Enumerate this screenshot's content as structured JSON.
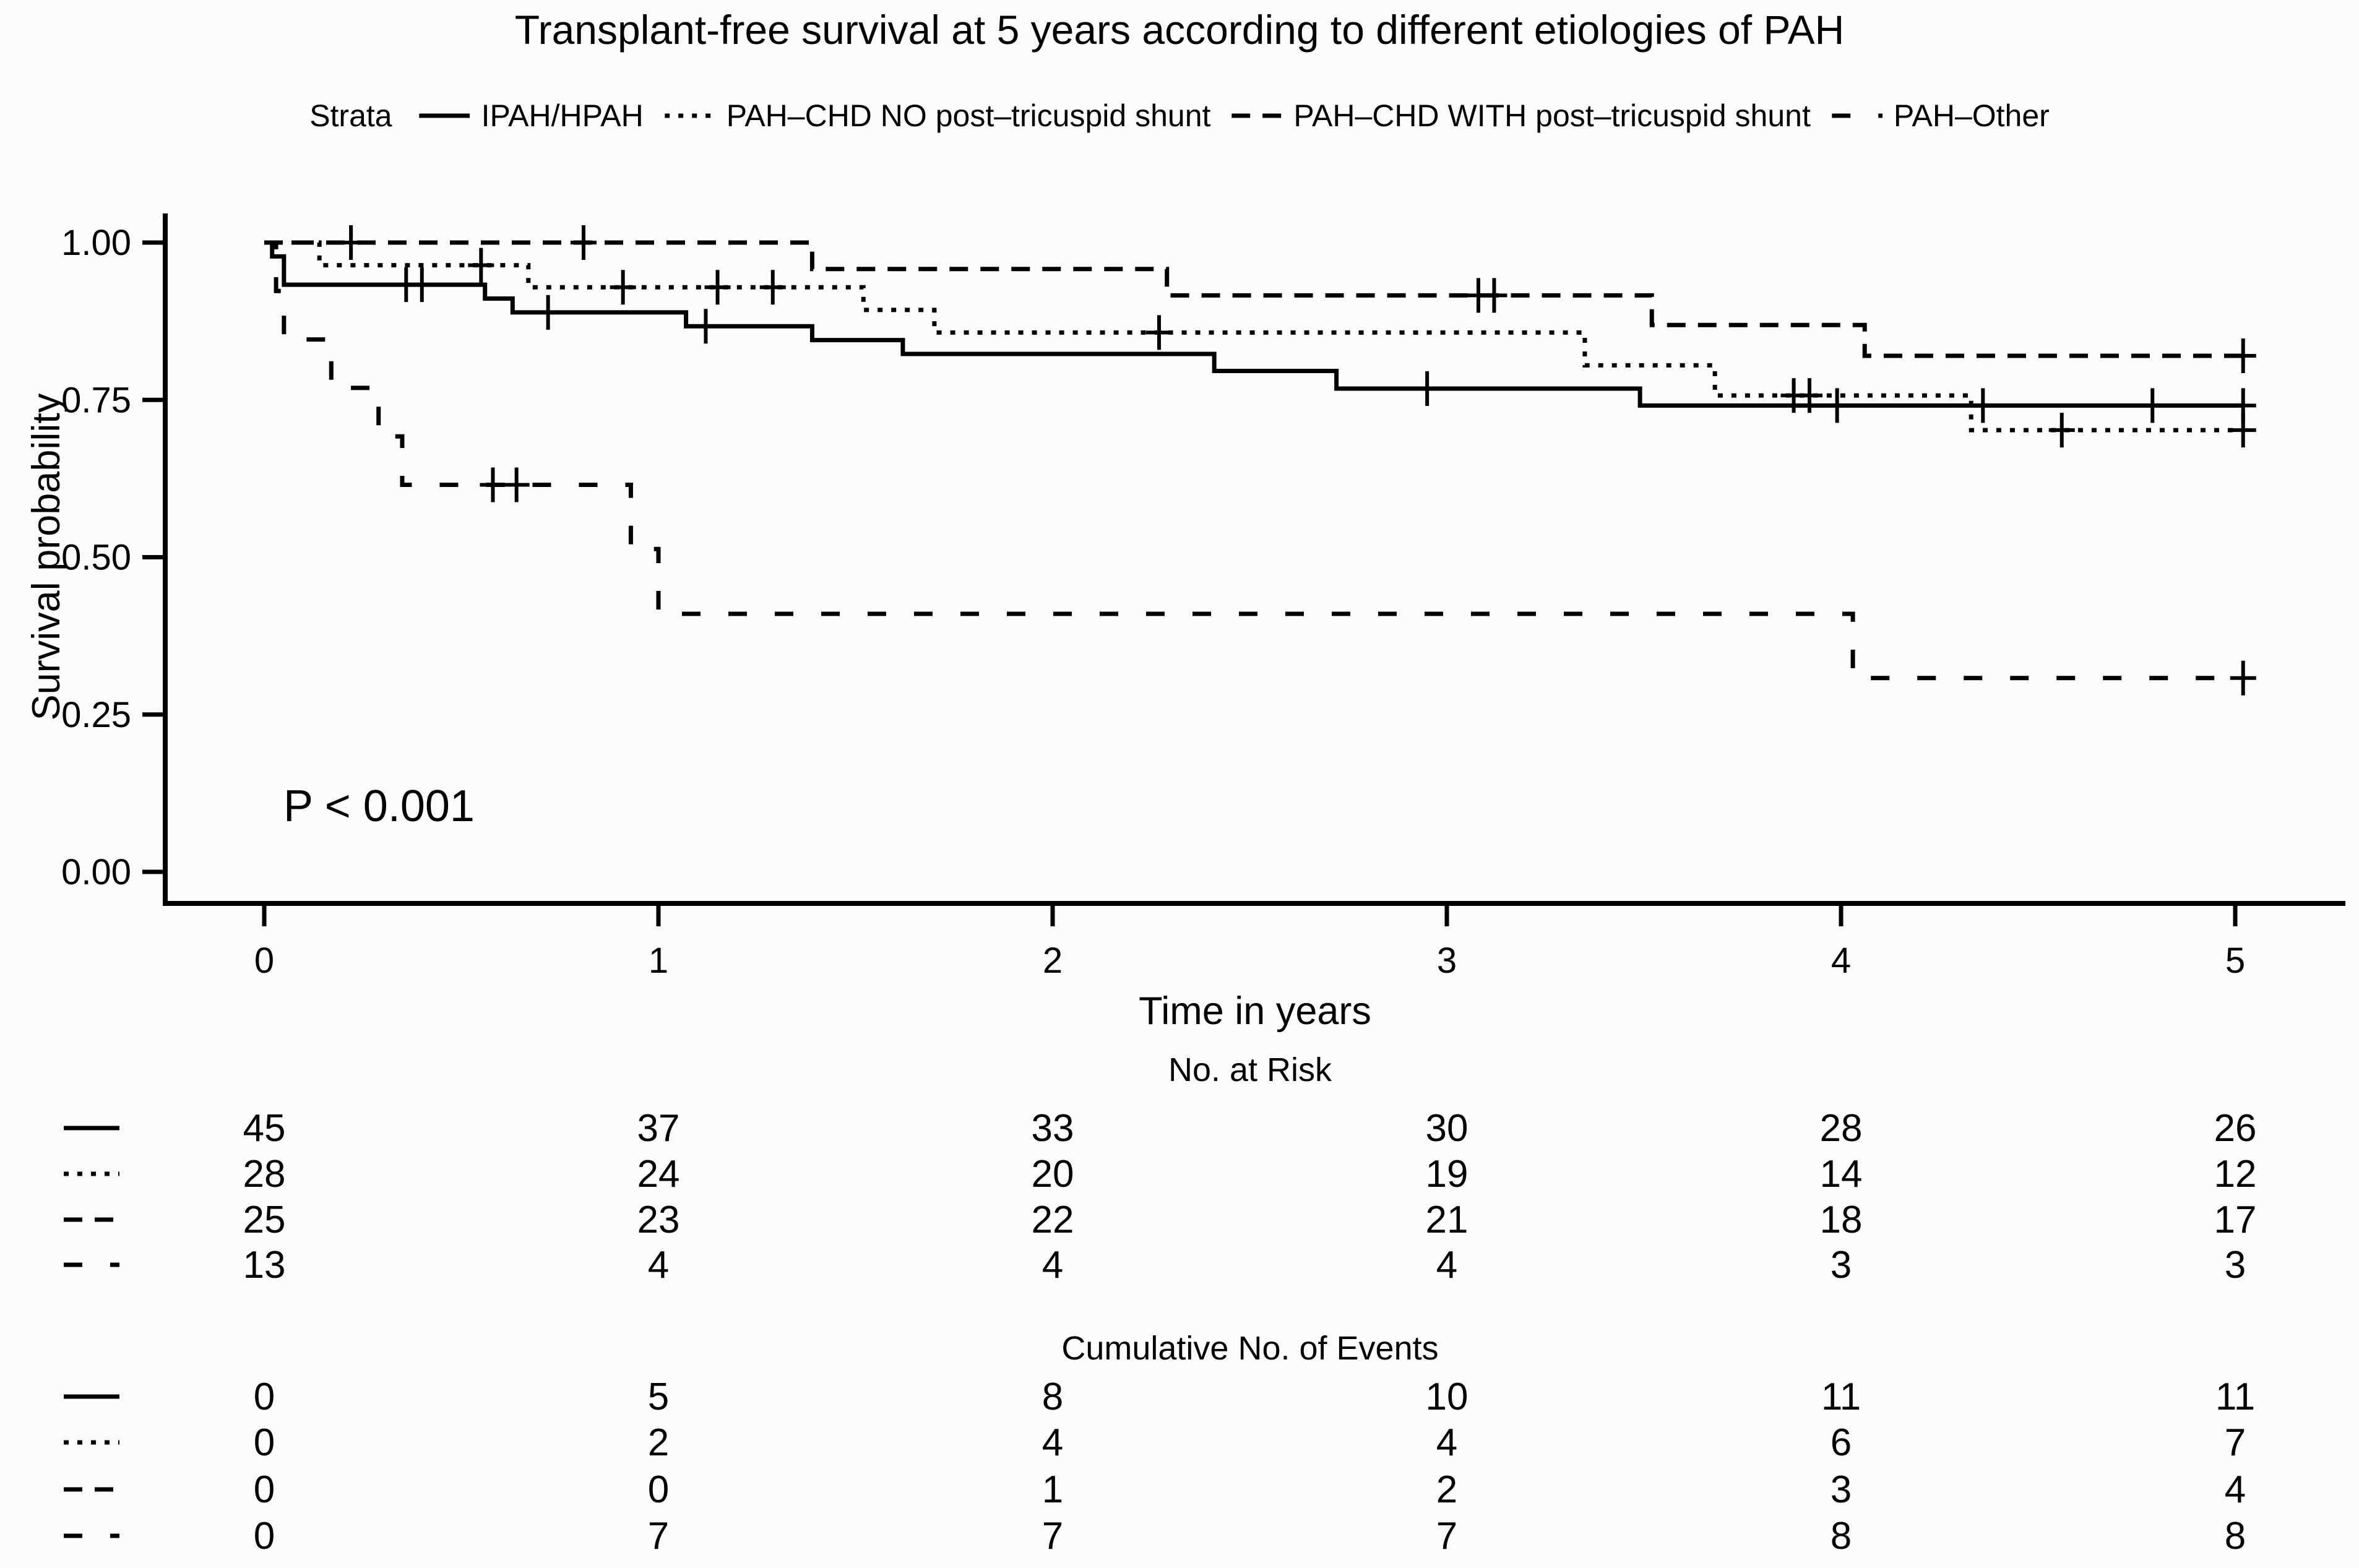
{
  "figure": {
    "title": "Transplant-free survival at 5 years according to different etiologies of PAH",
    "pvalue": "P < 0.001"
  },
  "legend": {
    "strata_label": "Strata"
  },
  "chart_data": {
    "type": "line",
    "subtype": "kaplan-meier-step",
    "title": "Transplant-free survival at 5 years according to different etiologies of PAH",
    "xlabel": "Time in years",
    "ylabel": "Survival probability",
    "xlim": [
      0,
      5
    ],
    "ylim": [
      0,
      1
    ],
    "x_ticks": [
      [
        0,
        "0"
      ],
      [
        1,
        "1"
      ],
      [
        2,
        "2"
      ],
      [
        3,
        "3"
      ],
      [
        4,
        "4"
      ],
      [
        5,
        "5"
      ]
    ],
    "y_ticks": [
      [
        0.0,
        "0.00"
      ],
      [
        0.25,
        "0.25"
      ],
      [
        0.5,
        "0.50"
      ],
      [
        0.75,
        "0.75"
      ],
      [
        1.0,
        "1.00"
      ]
    ],
    "grid": false,
    "legend_position": "top",
    "annotation": "P < 0.001",
    "end_time": 5.02,
    "series": [
      {
        "name": "IPAH/HPAH",
        "line_style": "solid",
        "steps": [
          [
            0,
            1.0
          ],
          [
            0.02,
            0.978
          ],
          [
            0.05,
            0.933
          ],
          [
            0.56,
            0.911
          ],
          [
            0.63,
            0.889
          ],
          [
            1.07,
            0.867
          ],
          [
            1.39,
            0.845
          ],
          [
            1.62,
            0.823
          ],
          [
            2.41,
            0.796
          ],
          [
            2.72,
            0.768
          ],
          [
            3.49,
            0.741
          ]
        ],
        "censors": [
          [
            0.36,
            0.933
          ],
          [
            0.4,
            0.933
          ],
          [
            0.72,
            0.889
          ],
          [
            1.12,
            0.867
          ],
          [
            2.95,
            0.768
          ],
          [
            3.99,
            0.741
          ],
          [
            4.36,
            0.741
          ],
          [
            4.79,
            0.741
          ],
          [
            5.02,
            0.741
          ]
        ]
      },
      {
        "name": "PAH–CHD NO post–tricuspid shunt",
        "line_style": "dotted",
        "steps": [
          [
            0,
            1.0
          ],
          [
            0.14,
            0.964
          ],
          [
            0.67,
            0.929
          ],
          [
            1.52,
            0.893
          ],
          [
            1.7,
            0.857
          ],
          [
            3.35,
            0.805
          ],
          [
            3.68,
            0.757
          ],
          [
            4.33,
            0.702
          ]
        ],
        "censors": [
          [
            0.55,
            0.964
          ],
          [
            0.91,
            0.929
          ],
          [
            1.15,
            0.929
          ],
          [
            1.29,
            0.929
          ],
          [
            2.27,
            0.857
          ],
          [
            3.88,
            0.757
          ],
          [
            3.92,
            0.757
          ],
          [
            4.56,
            0.702
          ],
          [
            5.02,
            0.702
          ]
        ]
      },
      {
        "name": "PAH–CHD WITH post–tricuspid shunt",
        "line_style": "dashed",
        "steps": [
          [
            0,
            1.0
          ],
          [
            1.39,
            0.958
          ],
          [
            2.29,
            0.916
          ],
          [
            3.52,
            0.869
          ],
          [
            4.06,
            0.82
          ]
        ],
        "censors": [
          [
            0.22,
            1.0
          ],
          [
            0.81,
            1.0
          ],
          [
            3.08,
            0.916
          ],
          [
            3.12,
            0.916
          ],
          [
            5.02,
            0.82
          ]
        ]
      },
      {
        "name": "PAH–Other",
        "line_style": "longdash",
        "steps": [
          [
            0,
            1.0
          ],
          [
            0.03,
            0.923
          ],
          [
            0.05,
            0.846
          ],
          [
            0.17,
            0.769
          ],
          [
            0.29,
            0.692
          ],
          [
            0.35,
            0.615
          ],
          [
            0.93,
            0.513
          ],
          [
            1.0,
            0.41
          ],
          [
            4.03,
            0.308
          ]
        ],
        "censors": [
          [
            0.58,
            0.615
          ],
          [
            0.64,
            0.615
          ],
          [
            5.02,
            0.308
          ]
        ]
      }
    ]
  },
  "risk_table": {
    "title": "No. at Risk",
    "times": [
      0,
      1,
      2,
      3,
      4,
      5
    ],
    "rows": [
      {
        "strata": "IPAH/HPAH",
        "line_style": "solid",
        "values": [
          45,
          37,
          33,
          30,
          28,
          26
        ]
      },
      {
        "strata": "PAH–CHD NO post–tricuspid shunt",
        "line_style": "dotted",
        "values": [
          28,
          24,
          20,
          19,
          14,
          12
        ]
      },
      {
        "strata": "PAH–CHD WITH post–tricuspid shunt",
        "line_style": "dashed",
        "values": [
          25,
          23,
          22,
          21,
          18,
          17
        ]
      },
      {
        "strata": "PAH–Other",
        "line_style": "longdash",
        "values": [
          13,
          4,
          4,
          4,
          3,
          3
        ]
      }
    ]
  },
  "events_table": {
    "title": "Cumulative No. of Events",
    "times": [
      0,
      1,
      2,
      3,
      4,
      5
    ],
    "rows": [
      {
        "strata": "IPAH/HPAH",
        "line_style": "solid",
        "values": [
          0,
          5,
          8,
          10,
          11,
          11
        ]
      },
      {
        "strata": "PAH–CHD NO post–tricuspid shunt",
        "line_style": "dotted",
        "values": [
          0,
          2,
          4,
          4,
          6,
          7
        ]
      },
      {
        "strata": "PAH–CHD WITH post–tricuspid shunt",
        "line_style": "dashed",
        "values": [
          0,
          0,
          1,
          2,
          3,
          4
        ]
      },
      {
        "strata": "PAH–Other",
        "line_style": "longdash",
        "values": [
          0,
          7,
          7,
          7,
          8,
          8
        ]
      }
    ]
  }
}
